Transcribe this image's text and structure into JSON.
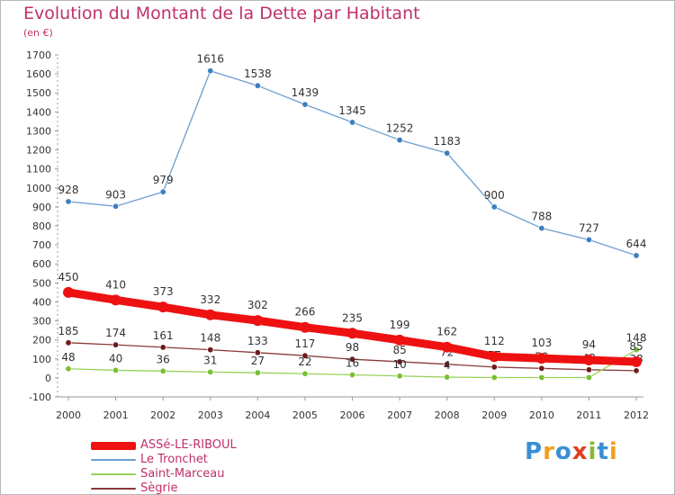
{
  "title": "Evolution du Montant de la Dette par Habitant",
  "subtitle": "(en €)",
  "logo": {
    "text": "Proxiti",
    "colors": [
      "#3b8fd4",
      "#f0a020",
      "#3b8fd4",
      "#e0401f",
      "#8ab831",
      "#3b8fd4",
      "#f0a020"
    ]
  },
  "chart_data": {
    "type": "line",
    "x": [
      "2000",
      "2001",
      "2002",
      "2003",
      "2004",
      "2005",
      "2006",
      "2007",
      "2008",
      "2009",
      "2010",
      "2011",
      "2012"
    ],
    "ylim": [
      -100,
      1700
    ],
    "yticks": [
      -100,
      0,
      100,
      200,
      300,
      400,
      500,
      600,
      700,
      800,
      900,
      1000,
      1100,
      1200,
      1300,
      1400,
      1500,
      1600,
      1700
    ],
    "grid": false,
    "legend_position": "bottom-left",
    "series": [
      {
        "name": "Le Tronchet",
        "color": "#6a9fd0",
        "marker": "#3d7fbf",
        "width": 1.3,
        "radius": 3.2,
        "values": [
          928,
          903,
          979,
          1616,
          1538,
          1439,
          1345,
          1252,
          1183,
          900,
          788,
          727,
          644
        ],
        "labels": [
          "928",
          "903",
          "979",
          "1616",
          "1538",
          "1439",
          "1345",
          "1252",
          "1183",
          "900",
          "788",
          "727",
          "644"
        ]
      },
      {
        "name": "Sègrie",
        "color": "#8a3a3a",
        "marker": "#6e1a1a",
        "width": 1.3,
        "radius": 3.2,
        "values": [
          185,
          174,
          161,
          148,
          133,
          117,
          98,
          85,
          72,
          57,
          50,
          43,
          38
        ],
        "labels": [
          "185",
          "174",
          "161",
          "148",
          "133",
          "117",
          "98",
          "85",
          "72",
          "57",
          "50",
          "43",
          "38"
        ]
      },
      {
        "name": "Saint-Marceau",
        "color": "#98d25a",
        "marker": "#78c030",
        "width": 1.3,
        "radius": 3.2,
        "values": [
          48,
          40,
          36,
          31,
          27,
          22,
          16,
          10,
          4,
          2,
          2,
          2,
          148
        ],
        "labels": [
          "48",
          "40",
          "36",
          "31",
          "27",
          "22",
          "16",
          "10",
          "4",
          "",
          "",
          "",
          "148"
        ]
      },
      {
        "name": "ASSé-LE-RIBOUL",
        "color": "#ee1111",
        "marker": "#ee1111",
        "width": 9,
        "radius": 6,
        "values": [
          450,
          410,
          373,
          332,
          302,
          266,
          235,
          199,
          162,
          112,
          103,
          94,
          85
        ],
        "labels": [
          "450",
          "410",
          "373",
          "332",
          "302",
          "266",
          "235",
          "199",
          "162",
          "112",
          "103",
          "94",
          "85"
        ]
      }
    ],
    "legend_order": [
      "ASSé-LE-RIBOUL",
      "Le Tronchet",
      "Saint-Marceau",
      "Sègrie"
    ]
  }
}
